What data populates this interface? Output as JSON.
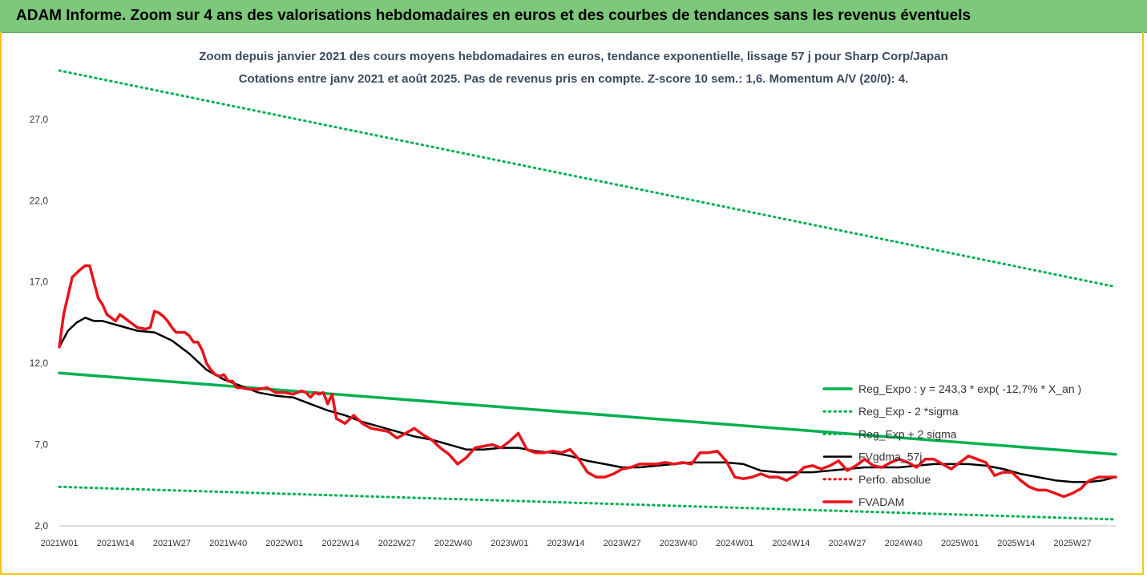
{
  "banner": {
    "title": "ADAM Informe. Zoom sur 4 ans des valorisations hebdomadaires en euros et des courbes de tendances sans les revenus éventuels"
  },
  "colors": {
    "banner": "#7dc87a",
    "frame": "#f4c518",
    "reg_expo": "#00b050",
    "fvgdma": "#000000",
    "fvadam": "#e8141b",
    "perfo": "#e8141b",
    "subtitle": "#3b4a61"
  },
  "chart_data": {
    "type": "line",
    "title": "Zoom depuis janvier 2021 des cours moyens hebdomadaires en euros, tendance exponentielle, lissage 57 j pour Sharp Corp/Japan",
    "subtitle": "Cotations entre janv 2021 et août 2025.  Pas de revenus pris en compte. Z-score 10 sem.: 1,6. Momentum A/V (20/0): 4.",
    "ylim": [
      2,
      30
    ],
    "y_ticks": [
      "2,0",
      "7,0",
      "12,0",
      "17,0",
      "22,0",
      "27,0"
    ],
    "y_tick_values": [
      2,
      7,
      12,
      17,
      22,
      27
    ],
    "x_ticks": [
      "2021W01",
      "2021W14",
      "2021W27",
      "2021W40",
      "2022W01",
      "2022W14",
      "2022W27",
      "2022W40",
      "2023W01",
      "2023W14",
      "2023W27",
      "2023W40",
      "2024W01",
      "2024W14",
      "2024W27",
      "2024W40",
      "2025W01",
      "2025W14",
      "2025W27"
    ],
    "x_tick_weeks": [
      0,
      13,
      26,
      39,
      52,
      65,
      78,
      91,
      104,
      117,
      130,
      143,
      156,
      169,
      182,
      195,
      208,
      221,
      234
    ],
    "x_max": 244,
    "grid": false,
    "legend_position": "right",
    "series": [
      {
        "name": "Reg_Expo : y = 243,3 * exp( -12,7% *  X_an )",
        "style": "solid-thick",
        "color": "#00b050",
        "x": [
          0,
          244
        ],
        "y": [
          11.4,
          6.4
        ]
      },
      {
        "name": "Reg_Exp - 2 *sigma",
        "style": "dotted",
        "color": "#00b050",
        "x": [
          0,
          244
        ],
        "y": [
          4.4,
          2.4
        ]
      },
      {
        "name": "Reg_Exp + 2 sigma",
        "style": "dotted",
        "color": "#00b050",
        "x": [
          0,
          244
        ],
        "y": [
          30.0,
          16.7
        ]
      },
      {
        "name": "FVgdma_57j",
        "style": "solid",
        "color": "#000000",
        "x": [
          0,
          2,
          4,
          6,
          8,
          10,
          14,
          18,
          22,
          26,
          30,
          34,
          38,
          42,
          46,
          50,
          54,
          58,
          62,
          66,
          70,
          74,
          78,
          82,
          86,
          90,
          94,
          98,
          102,
          106,
          110,
          114,
          118,
          122,
          126,
          130,
          134,
          138,
          142,
          146,
          150,
          154,
          158,
          162,
          166,
          170,
          174,
          178,
          182,
          186,
          190,
          194,
          198,
          202,
          206,
          210,
          214,
          218,
          222,
          226,
          230,
          234,
          238,
          241,
          244
        ],
        "y": [
          13.0,
          14.0,
          14.5,
          14.8,
          14.6,
          14.6,
          14.3,
          14.0,
          13.9,
          13.4,
          12.6,
          11.6,
          11.0,
          10.6,
          10.2,
          10.0,
          9.9,
          9.5,
          9.1,
          8.8,
          8.4,
          8.1,
          7.8,
          7.5,
          7.3,
          7.0,
          6.7,
          6.7,
          6.8,
          6.8,
          6.6,
          6.5,
          6.3,
          6.0,
          5.8,
          5.6,
          5.6,
          5.7,
          5.8,
          5.9,
          5.9,
          5.9,
          5.8,
          5.4,
          5.3,
          5.3,
          5.3,
          5.4,
          5.5,
          5.6,
          5.6,
          5.6,
          5.7,
          5.8,
          5.8,
          5.8,
          5.7,
          5.5,
          5.2,
          5.0,
          4.8,
          4.7,
          4.7,
          4.8,
          5.0
        ]
      },
      {
        "name": "Perfo. absolue",
        "style": "dotted",
        "color": "#e8141b",
        "x": [],
        "y": []
      },
      {
        "name": "FVADAM",
        "style": "solid-thick",
        "color": "#e8141b",
        "x": [
          0,
          1,
          3,
          5,
          6,
          7,
          8,
          9,
          10,
          11,
          12,
          13,
          14,
          15,
          16,
          18,
          20,
          21,
          22,
          23,
          24,
          25,
          26,
          27,
          28,
          29,
          30,
          31,
          32,
          33,
          34,
          35,
          36,
          37,
          38,
          39,
          40,
          41,
          42,
          44,
          46,
          48,
          50,
          52,
          54,
          56,
          57,
          58,
          59,
          60,
          61,
          62,
          63,
          64,
          66,
          68,
          70,
          72,
          74,
          76,
          78,
          80,
          82,
          84,
          86,
          88,
          90,
          92,
          94,
          96,
          98,
          100,
          102,
          104,
          106,
          108,
          110,
          112,
          114,
          116,
          118,
          120,
          122,
          124,
          126,
          128,
          130,
          132,
          134,
          136,
          138,
          140,
          142,
          144,
          146,
          148,
          150,
          152,
          154,
          156,
          158,
          160,
          162,
          164,
          166,
          168,
          170,
          172,
          174,
          176,
          178,
          180,
          182,
          184,
          186,
          188,
          190,
          192,
          194,
          196,
          198,
          200,
          202,
          204,
          206,
          208,
          210,
          212,
          214,
          216,
          218,
          220,
          222,
          224,
          226,
          228,
          230,
          232,
          234,
          236,
          237,
          238,
          240,
          242,
          244
        ],
        "y": [
          13.0,
          15.0,
          17.3,
          17.8,
          18.0,
          18.0,
          17.0,
          16.0,
          15.6,
          15.0,
          14.8,
          14.6,
          15.0,
          14.8,
          14.6,
          14.2,
          14.1,
          14.2,
          15.2,
          15.1,
          14.9,
          14.6,
          14.2,
          13.9,
          13.9,
          13.9,
          13.7,
          13.3,
          13.3,
          12.8,
          12.0,
          11.6,
          11.3,
          11.2,
          11.3,
          10.9,
          10.9,
          10.5,
          10.5,
          10.4,
          10.4,
          10.5,
          10.2,
          10.2,
          10.1,
          10.3,
          10.2,
          9.9,
          10.2,
          10.1,
          10.2,
          9.5,
          10.1,
          8.6,
          8.3,
          8.8,
          8.3,
          8.0,
          7.9,
          7.8,
          7.4,
          7.7,
          8.0,
          7.6,
          7.3,
          6.8,
          6.4,
          5.8,
          6.2,
          6.8,
          6.9,
          7.0,
          6.8,
          7.2,
          7.7,
          6.7,
          6.5,
          6.5,
          6.6,
          6.5,
          6.7,
          6.1,
          5.3,
          5.0,
          5.0,
          5.2,
          5.5,
          5.6,
          5.8,
          5.8,
          5.8,
          5.9,
          5.8,
          5.9,
          5.8,
          6.5,
          6.5,
          6.6,
          6.0,
          5.0,
          4.9,
          5.0,
          5.2,
          5.0,
          5.0,
          4.8,
          5.1,
          5.6,
          5.7,
          5.5,
          5.7,
          6.0,
          5.4,
          5.7,
          6.1,
          5.7,
          5.6,
          5.9,
          6.1,
          5.9,
          5.6,
          6.1,
          6.1,
          5.8,
          5.5,
          5.9,
          6.3,
          6.1,
          5.9,
          5.1,
          5.3,
          5.3,
          4.8,
          4.4,
          4.2,
          4.2,
          4.0,
          3.8,
          4.0,
          4.3,
          4.6,
          4.8,
          5.0,
          5.0,
          5.0
        ]
      }
    ]
  }
}
